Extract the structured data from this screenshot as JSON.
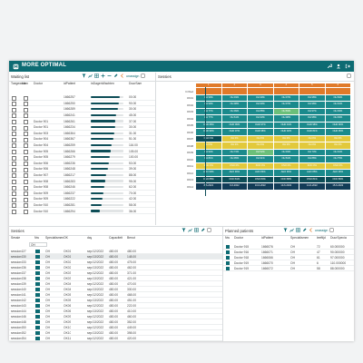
{
  "app": {
    "title": "MORE OPTIMAL"
  },
  "colors": {
    "brand": "#0d6b73",
    "dark": "#0d4d57",
    "orange": "#e07a2a"
  },
  "waiting_list": {
    "title": "Waiting list",
    "unassign_label": "unassign",
    "columns": [
      "Toegewezen",
      "Ids",
      "Doctor",
      "idPatient",
      "inDagenWachten",
      "DuurSam"
    ],
    "rows": [
      {
        "doctor": "",
        "id": "1666257",
        "dur": "00.00",
        "prog": 0.88
      },
      {
        "doctor": "",
        "id": "1666250",
        "dur": "90.00",
        "prog": 0.85
      },
      {
        "doctor": "",
        "id": "1666289",
        "dur": "30.00",
        "prog": 0.82
      },
      {
        "doctor": "",
        "id": "1666241",
        "dur": "45.00",
        "prog": 0.79
      },
      {
        "doctor": "Doctor 901",
        "id": "1666261",
        "dur": "37.00",
        "prog": 0.76
      },
      {
        "doctor": "Doctor 901",
        "id": "1666234",
        "dur": "30.00",
        "prog": 0.74
      },
      {
        "doctor": "Doctor 903",
        "id": "1666364",
        "dur": "31.00",
        "prog": 0.71
      },
      {
        "doctor": "Doctor 904",
        "id": "1666367",
        "dur": "51.00",
        "prog": 0.68
      },
      {
        "doctor": "Doctor 904",
        "id": "1666259",
        "dur": "116.00",
        "prog": 0.65
      },
      {
        "doctor": "Doctor 905",
        "id": "1666266",
        "dur": "105.00",
        "prog": 0.62
      },
      {
        "doctor": "Doctor 905",
        "id": "1666279",
        "dur": "100.00",
        "prog": 0.58
      },
      {
        "doctor": "Doctor 906",
        "id": "1666236",
        "dur": "53.00",
        "prog": 0.55
      },
      {
        "doctor": "Doctor 906",
        "id": "1666248",
        "dur": "39.00",
        "prog": 0.52
      },
      {
        "doctor": "Doctor 907",
        "id": "1666217",
        "dur": "88.00",
        "prog": 0.48
      },
      {
        "doctor": "Doctor 908",
        "id": "1666283",
        "dur": "95.00",
        "prog": 0.45
      },
      {
        "doctor": "Doctor 908",
        "id": "1666246",
        "dur": "62.00",
        "prog": 0.42
      },
      {
        "doctor": "Doctor 909",
        "id": "1666237",
        "dur": "70.00",
        "prog": 0.39
      },
      {
        "doctor": "Doctor 909",
        "id": "1666222",
        "dur": "42.00",
        "prog": 0.35
      },
      {
        "doctor": "Doctor 910",
        "id": "1666281",
        "dur": "58.00",
        "prog": 0.32
      },
      {
        "doctor": "Doctor 910",
        "id": "1666294",
        "dur": "36.00",
        "prog": 0.29
      }
    ]
  },
  "sessies": {
    "title": "Sessies",
    "columns": [
      "1",
      "2",
      "3",
      "4",
      "5",
      "6"
    ],
    "rows": [
      {
        "label": "D.Wed",
        "cells": [
          "",
          "",
          "",
          "",
          "",
          ""
        ],
        "tone": [
          "o",
          "o",
          "o",
          "o",
          "o",
          "o"
        ]
      },
      {
        "label": "OK01",
        "cells": [
          "OH 99%",
          "OH 93%",
          "OH 99%",
          "OH 97%",
          "OH 98%",
          "OH 84%"
        ],
        "tone": [
          "t",
          "t",
          "t",
          "t",
          "t",
          "t"
        ]
      },
      {
        "label": "OK02",
        "cells": [
          "OH 99%",
          "OH 98%",
          "OH 99%",
          "OH 97%",
          "OH 98%",
          "OH 91%"
        ],
        "tone": [
          "t",
          "t",
          "t",
          "t",
          "t",
          "t"
        ]
      },
      {
        "label": "OK03",
        "cells": [
          "OH 77%",
          "OH 99%",
          "OH 88%",
          "OH 83%",
          "OH 97%",
          "OH 93%"
        ],
        "tone": [
          "t",
          "t",
          "t",
          "g",
          "t",
          "t"
        ]
      },
      {
        "label": "OK04",
        "cells": [
          "OH 77%",
          "OH 61%",
          "OH 93%",
          "OH 98%",
          "OH 98%",
          "OH 93%"
        ],
        "tone": [
          "t",
          "t",
          "t",
          "t",
          "t",
          "t"
        ]
      },
      {
        "label": "OK05",
        "cells": [
          "OHD 68%",
          "OHD 99%",
          "OHD 97%",
          "OHD 91%",
          "OHD 98%",
          "OHD 90%"
        ],
        "tone": [
          "t",
          "t",
          "t",
          "t",
          "t",
          "t"
        ]
      },
      {
        "label": "OK06",
        "cells": [
          "OHD 99%",
          "OHD 97%",
          "OHD 98%",
          "OHD 92%",
          "OHD 81%",
          "OHD 95%"
        ],
        "tone": [
          "t",
          "t",
          "t",
          "t",
          "t",
          "t"
        ]
      },
      {
        "label": "OK07",
        "cells": [
          "OGO 0%",
          "OH 0%",
          "OH 0%",
          "OH 0%",
          "OH 0%",
          "OH 0%"
        ],
        "tone": [
          "d",
          "y",
          "y",
          "y",
          "y",
          "y"
        ]
      },
      {
        "label": "OK08",
        "cells": [
          "OH 0%",
          "OH 0%",
          "OH 0%",
          "OH 0%",
          "OH 0%",
          "OH 0%"
        ],
        "tone": [
          "y",
          "y",
          "y",
          "y",
          "y",
          "y"
        ]
      },
      {
        "label": "OK09",
        "cells": [
          "OH 94%",
          "OH 72%",
          "OH 52%",
          "OH 93%",
          "OH 73%",
          "OH 91%"
        ],
        "tone": [
          "t",
          "t",
          "g",
          "t",
          "t",
          "t"
        ]
      },
      {
        "label": "OK10",
        "cells": [
          "OH 81%",
          "OH 95%",
          "OH 91%",
          "OH 81%",
          "OH 88%",
          "OH 75%"
        ],
        "tone": [
          "t",
          "t",
          "t",
          "t",
          "t",
          "t"
        ]
      },
      {
        "label": "OK11",
        "cells": [
          "KNO 0%",
          "KNO 0%",
          "KNO 0%",
          "KNO 0%",
          "KNO 0%",
          "KNO 0%"
        ],
        "tone": [
          "y",
          "y",
          "y",
          "y",
          "y",
          "y"
        ]
      },
      {
        "label": "OK12",
        "cells": [
          "AHO 90%",
          "AHO 90%",
          "AHO 84%",
          "AHO 90%",
          "AHO 85%",
          "AHO 90%"
        ],
        "tone": [
          "t",
          "t",
          "t",
          "t",
          "t",
          "t"
        ]
      },
      {
        "label": "OK13",
        "cells": [
          "ONO 88%",
          "ONO 81%",
          "ONO 80%",
          "ONO 88%",
          "ONO 81%",
          "ONO 80%"
        ],
        "tone": [
          "d",
          "d",
          "d",
          "d",
          "d",
          "d"
        ]
      },
      {
        "label": "OK14",
        "cells": [
          "8-6-2022",
          "9-6-2022",
          "10-6-2022",
          "13-6-2022",
          "14-6-2022",
          "15-6-2022"
        ],
        "tone": [
          "n",
          "n",
          "n",
          "n",
          "n",
          "n"
        ]
      }
    ]
  },
  "sessions_list": {
    "title": "Sessies",
    "columns": [
      "Sessie",
      "Nw",
      "Specialismen",
      "OK",
      "day",
      "Capaciteit",
      "Benut"
    ],
    "filter_value": "OH",
    "rows": [
      {
        "sessie": "session427",
        "spec": "OH",
        "ok": "OK01",
        "day": "sep/12/2022",
        "cap": "480.00",
        "benut": "480.00"
      },
      {
        "sessie": "session430",
        "spec": "OH",
        "ok": "OK01",
        "day": "sep/13/2022",
        "cap": "480.00",
        "benut": "148.00"
      },
      {
        "sessie": "session433",
        "spec": "OH",
        "ok": "OK02",
        "day": "sep/12/2022",
        "cap": "480.00",
        "benut": "475.00"
      },
      {
        "sessie": "session436",
        "spec": "OH",
        "ok": "OK02",
        "day": "sep/13/2022",
        "cap": "480.00",
        "benut": "462.00"
      },
      {
        "sessie": "session437",
        "spec": "OH",
        "ok": "OK03",
        "day": "sep/12/2022",
        "cap": "480.00",
        "benut": "371.00"
      },
      {
        "sessie": "session438",
        "spec": "OH",
        "ok": "OK03",
        "day": "sep/13/2022",
        "cap": "480.00",
        "benut": "421.00"
      },
      {
        "sessie": "session439",
        "spec": "OH",
        "ok": "OK04",
        "day": "sep/12/2022",
        "cap": "480.00",
        "benut": "470.00"
      },
      {
        "sessie": "session440",
        "spec": "OH",
        "ok": "OK04",
        "day": "sep/13/2022",
        "cap": "480.00",
        "benut": "330.00"
      },
      {
        "sessie": "session441",
        "spec": "OH",
        "ok": "OK05",
        "day": "sep/12/2022",
        "cap": "480.00",
        "benut": "468.00"
      },
      {
        "sessie": "session442",
        "spec": "OH",
        "ok": "OK05",
        "day": "sep/13/2022",
        "cap": "480.00",
        "benut": "451.00"
      },
      {
        "sessie": "session443",
        "spec": "OH",
        "ok": "OK06",
        "day": "sep/12/2022",
        "cap": "480.00",
        "benut": "222.00"
      },
      {
        "sessie": "session444",
        "spec": "OH",
        "ok": "OK06",
        "day": "sep/13/2022",
        "cap": "480.00",
        "benut": "410.00"
      },
      {
        "sessie": "session446",
        "spec": "OH",
        "ok": "OK09",
        "day": "sep/12/2022",
        "cap": "480.00",
        "benut": "460.00"
      },
      {
        "sessie": "session448",
        "spec": "OH",
        "ok": "OK09",
        "day": "sep/13/2022",
        "cap": "480.00",
        "benut": "352.00"
      },
      {
        "sessie": "session450",
        "spec": "OH",
        "ok": "OK10",
        "day": "sep/12/2022",
        "cap": "480.00",
        "benut": "449.00"
      },
      {
        "sessie": "session452",
        "spec": "OH",
        "ok": "OK10",
        "day": "sep/13/2022",
        "cap": "480.00",
        "benut": "398.00"
      },
      {
        "sessie": "session454",
        "spec": "OH",
        "ok": "OK11",
        "day": "sep/12/2022",
        "cap": "480.00",
        "benut": "420.00"
      }
    ]
  },
  "planned_patients": {
    "title": "Planned patients",
    "unassign_label": "unassign",
    "columns": [
      "Nw",
      "Doctor",
      "idPatient",
      "Specialismen",
      "leeftijd",
      "DuurSpecial"
    ],
    "rows": [
      {
        "doctor": "Doctor 915",
        "id": "1666076",
        "spec": "OH",
        "age": "72",
        "dur": "60.000000"
      },
      {
        "doctor": "Doctor 916",
        "id": "1666071",
        "spec": "OH",
        "age": "47",
        "dur": "90.000000"
      },
      {
        "doctor": "Doctor 918",
        "id": "1666066",
        "spec": "OH",
        "age": "61",
        "dur": "97.000000"
      },
      {
        "doctor": "Doctor 919",
        "id": "1666070",
        "spec": "OH",
        "age": "6",
        "dur": "110.000000"
      },
      {
        "doctor": "Doctor 919",
        "id": "1666072",
        "spec": "OH",
        "age": "58",
        "dur": "88.000000"
      }
    ]
  }
}
